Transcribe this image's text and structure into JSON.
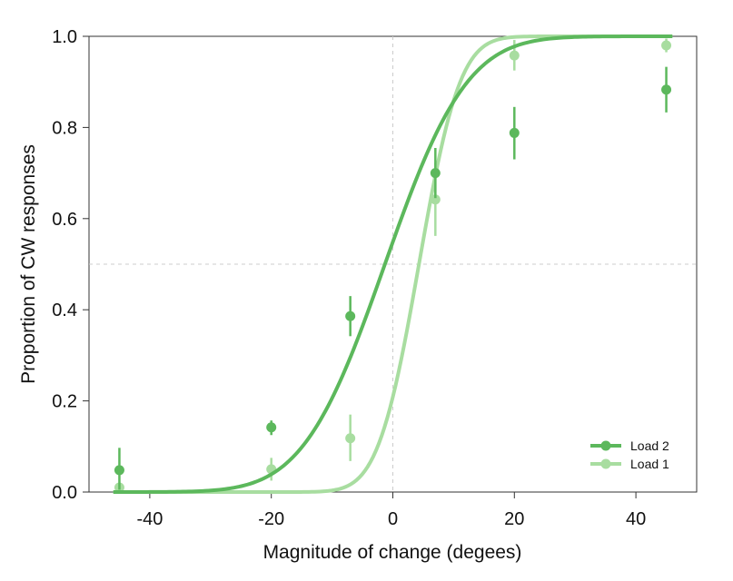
{
  "chart_data": {
    "type": "scatter",
    "title": "",
    "xlabel": "Magnitude of change (degees)",
    "ylabel": "Proportion of CW responses",
    "xlim": [
      -50,
      50
    ],
    "ylim": [
      0,
      1
    ],
    "xticks": [
      -40,
      -20,
      0,
      20,
      40
    ],
    "yticks": [
      0.0,
      0.2,
      0.4,
      0.6,
      0.8,
      1.0
    ],
    "xtick_labels": [
      "-40",
      "-20",
      "0",
      "20",
      "40"
    ],
    "ytick_labels": [
      "0.0",
      "0.2",
      "0.4",
      "0.6",
      "0.8",
      "1.0"
    ],
    "reference_lines": {
      "x": 0,
      "y": 0.5
    },
    "grid": false,
    "legend_position": "bottom-right",
    "series": [
      {
        "name": "Load 2",
        "color": "#5cb85c",
        "x": [
          -45,
          -20,
          -7,
          7,
          20,
          45
        ],
        "y": [
          0.048,
          0.142,
          0.386,
          0.7,
          0.788,
          0.883
        ],
        "err_low": [
          0.005,
          0.125,
          0.342,
          0.645,
          0.73,
          0.833
        ],
        "err_high": [
          0.097,
          0.157,
          0.43,
          0.755,
          0.845,
          0.933
        ],
        "fit": {
          "mu": -1.3,
          "sigma": 10.6,
          "x_range": [
            -46,
            46
          ]
        }
      },
      {
        "name": "Load 1",
        "color": "#a8dda0",
        "x": [
          -45,
          -20,
          -7,
          7,
          20,
          45
        ],
        "y": [
          0.01,
          0.05,
          0.118,
          0.642,
          0.958,
          0.98
        ],
        "err_low": [
          0.0,
          0.025,
          0.068,
          0.562,
          0.925,
          0.965
        ],
        "err_high": [
          0.02,
          0.075,
          0.17,
          0.722,
          0.992,
          0.995
        ],
        "fit": {
          "mu": 4.3,
          "sigma": 5.3,
          "x_range": [
            -46,
            46
          ]
        }
      }
    ]
  }
}
